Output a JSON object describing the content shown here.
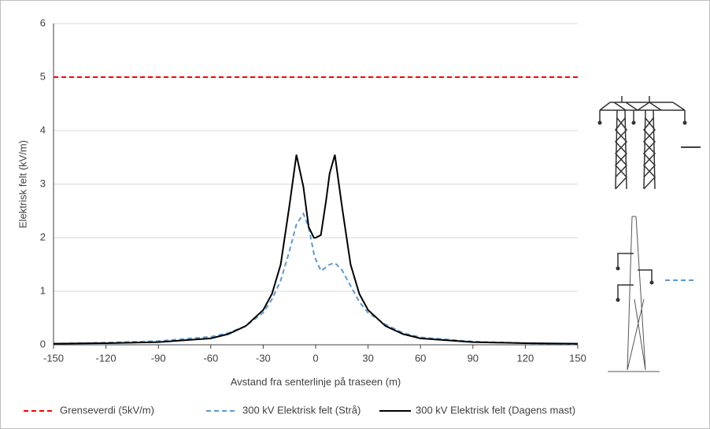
{
  "chart_data": {
    "type": "line",
    "x_label": "Avstand fra senterlinje på traseen (m)",
    "y_label": "Elektrisk felt  (kV/m)",
    "x": [
      -150,
      -120,
      -90,
      -60,
      -50,
      -40,
      -30,
      -25,
      -20,
      -15,
      -11,
      -7,
      -4,
      -1,
      0,
      3,
      6,
      8,
      11,
      15,
      20,
      25,
      30,
      40,
      50,
      60,
      90,
      120,
      150
    ],
    "series": [
      {
        "name": "Grenseverdi (5kV/m)",
        "color": "#ff0000",
        "dash": true,
        "values": [
          5,
          5,
          5,
          5,
          5,
          5,
          5,
          5,
          5,
          5,
          5,
          5,
          5,
          5,
          5,
          5,
          5,
          5,
          5,
          5,
          5,
          5,
          5,
          5,
          5,
          5,
          5,
          5,
          5
        ]
      },
      {
        "name": "300 kV Elektrisk felt (Strå)",
        "color": "#5b9bd5",
        "dash": true,
        "values": [
          0.02,
          0.04,
          0.07,
          0.15,
          0.22,
          0.35,
          0.6,
          0.85,
          1.2,
          1.75,
          2.25,
          2.45,
          2.2,
          1.7,
          1.6,
          1.38,
          1.45,
          1.5,
          1.53,
          1.4,
          1.1,
          0.8,
          0.6,
          0.38,
          0.22,
          0.14,
          0.06,
          0.03,
          0.01
        ]
      },
      {
        "name": "300 kV Elektrisk felt (Dagens mast)",
        "color": "#000000",
        "dash": false,
        "values": [
          0.02,
          0.03,
          0.05,
          0.12,
          0.2,
          0.35,
          0.65,
          0.95,
          1.5,
          2.6,
          3.55,
          2.95,
          2.2,
          2.0,
          2.0,
          2.05,
          2.7,
          3.2,
          3.55,
          2.6,
          1.5,
          0.95,
          0.65,
          0.35,
          0.2,
          0.12,
          0.05,
          0.03,
          0.02
        ]
      }
    ],
    "xlim": [
      -150,
      150
    ],
    "xticks": [
      -150,
      -120,
      -90,
      -60,
      -30,
      0,
      30,
      60,
      90,
      120,
      150
    ],
    "ylim": [
      0,
      6
    ],
    "yticks": [
      0,
      1,
      2,
      3,
      4,
      5,
      6
    ],
    "grid": true
  }
}
